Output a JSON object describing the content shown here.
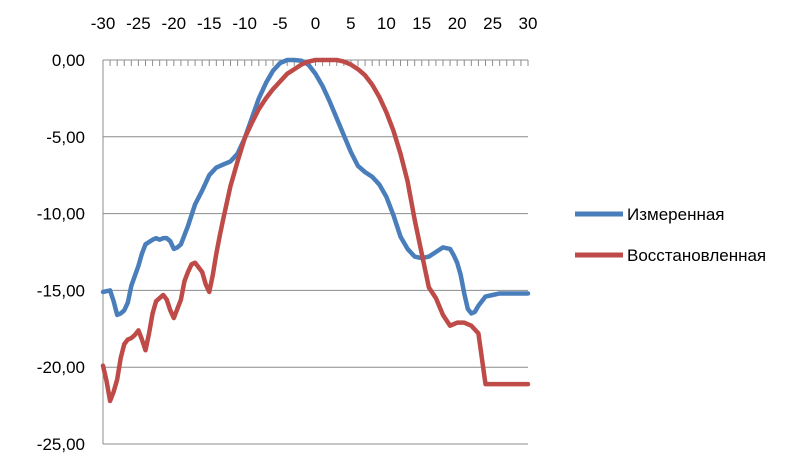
{
  "chart_data": {
    "type": "line",
    "title": "",
    "xlabel": "",
    "ylabel": "",
    "x_axis_position": "top",
    "xlim": [
      -30,
      30
    ],
    "ylim": [
      -25,
      0
    ],
    "x_ticks": [
      -30,
      -25,
      -20,
      -15,
      -10,
      -5,
      0,
      5,
      10,
      15,
      20,
      25,
      30
    ],
    "x_tick_labels": [
      "-30",
      "-25",
      "-20",
      "-15",
      "-10",
      "-5",
      "0",
      "5",
      "10",
      "15",
      "20",
      "25",
      "30"
    ],
    "y_ticks": [
      0,
      -5,
      -10,
      -15,
      -20,
      -25
    ],
    "y_tick_labels": [
      "0,00",
      "-5,00",
      "-10,00",
      "-15,00",
      "-20,00",
      "-25,00"
    ],
    "grid": "horizontal major gridlines",
    "legend_position": "right",
    "series": [
      {
        "name": "Измеренная",
        "color": "#4a7ebb",
        "x": [
          -30,
          -29,
          -28.5,
          -28,
          -27.5,
          -27,
          -26.5,
          -26,
          -25,
          -24.5,
          -24,
          -23,
          -22.5,
          -22,
          -21.5,
          -21,
          -20.5,
          -20,
          -19.5,
          -19,
          -18,
          -17.5,
          -17,
          -16,
          -15,
          -14,
          -13,
          -12,
          -11,
          -10,
          -9,
          -8,
          -7,
          -6,
          -5,
          -4,
          -3,
          -2,
          -1,
          0,
          1,
          2,
          3,
          4,
          5,
          6,
          7,
          8,
          9,
          10,
          11,
          12,
          13,
          14,
          15,
          16,
          17,
          18,
          19,
          19.5,
          20,
          20.5,
          21,
          21.5,
          22,
          22.5,
          23,
          24,
          25,
          26,
          26.5,
          27,
          27.5,
          28,
          29,
          30
        ],
        "y": [
          -15.1,
          -15.0,
          -15.7,
          -16.6,
          -16.5,
          -16.3,
          -15.8,
          -14.7,
          -13.4,
          -12.6,
          -12.0,
          -11.7,
          -11.6,
          -11.7,
          -11.6,
          -11.6,
          -11.8,
          -12.3,
          -12.2,
          -12.0,
          -10.8,
          -10.1,
          -9.4,
          -8.5,
          -7.5,
          -7.0,
          -6.8,
          -6.6,
          -6.1,
          -5.1,
          -3.8,
          -2.5,
          -1.5,
          -0.7,
          -0.2,
          0.0,
          0.0,
          -0.05,
          -0.3,
          -0.9,
          -1.7,
          -2.7,
          -3.8,
          -4.9,
          -6.0,
          -6.9,
          -7.3,
          -7.6,
          -8.1,
          -8.9,
          -10.1,
          -11.5,
          -12.3,
          -12.8,
          -12.9,
          -12.8,
          -12.5,
          -12.2,
          -12.3,
          -12.7,
          -13.2,
          -14.0,
          -15.2,
          -16.2,
          -16.5,
          -16.4,
          -16.0,
          -15.4,
          -15.3,
          -15.2,
          -15.2,
          -15.2,
          -15.2,
          -15.2,
          -15.2,
          -15.2
        ],
        "note_x_count_matches": true
      },
      {
        "name": "Восстановленная",
        "color": "#be4b48",
        "x": [
          -30,
          -29.5,
          -29,
          -28.5,
          -28,
          -27.5,
          -27,
          -26.5,
          -26,
          -25.5,
          -25,
          -24.5,
          -24,
          -23.5,
          -23,
          -22.5,
          -22,
          -21.5,
          -21,
          -20.5,
          -20,
          -19.5,
          -19,
          -18.5,
          -18,
          -17.5,
          -17,
          -16.5,
          -16,
          -15.5,
          -15,
          -14.5,
          -14,
          -13.5,
          -13,
          -12,
          -11,
          -10,
          -9,
          -8,
          -7,
          -6,
          -5,
          -4,
          -3,
          -2,
          -1,
          0,
          1,
          2,
          3,
          4,
          5,
          6,
          7,
          8,
          9,
          10,
          11,
          12,
          13,
          14,
          15,
          16,
          17,
          18,
          19,
          20,
          21,
          22,
          23,
          24,
          25,
          26,
          27,
          28,
          29,
          30
        ],
        "y": [
          -19.9,
          -20.9,
          -22.2,
          -21.6,
          -20.8,
          -19.4,
          -18.5,
          -18.2,
          -18.1,
          -17.9,
          -17.6,
          -18.2,
          -18.9,
          -17.8,
          -16.5,
          -15.7,
          -15.5,
          -15.3,
          -15.6,
          -16.3,
          -16.8,
          -16.2,
          -15.6,
          -14.4,
          -13.8,
          -13.3,
          -13.2,
          -13.5,
          -13.8,
          -14.6,
          -15.1,
          -14.0,
          -12.6,
          -11.4,
          -10.3,
          -8.2,
          -6.6,
          -5.1,
          -4.1,
          -3.2,
          -2.5,
          -1.9,
          -1.4,
          -0.9,
          -0.6,
          -0.3,
          -0.1,
          0.0,
          0.0,
          0.0,
          0.0,
          -0.1,
          -0.3,
          -0.6,
          -1.0,
          -1.6,
          -2.4,
          -3.4,
          -4.6,
          -6.1,
          -7.9,
          -10.4,
          -12.6,
          -14.8,
          -15.5,
          -16.6,
          -17.3,
          -17.1,
          -17.1,
          -17.3,
          -17.8,
          -21.1,
          -21.1,
          -21.1,
          -21.1,
          -21.1,
          -21.1,
          -21.1
        ]
      }
    ]
  }
}
